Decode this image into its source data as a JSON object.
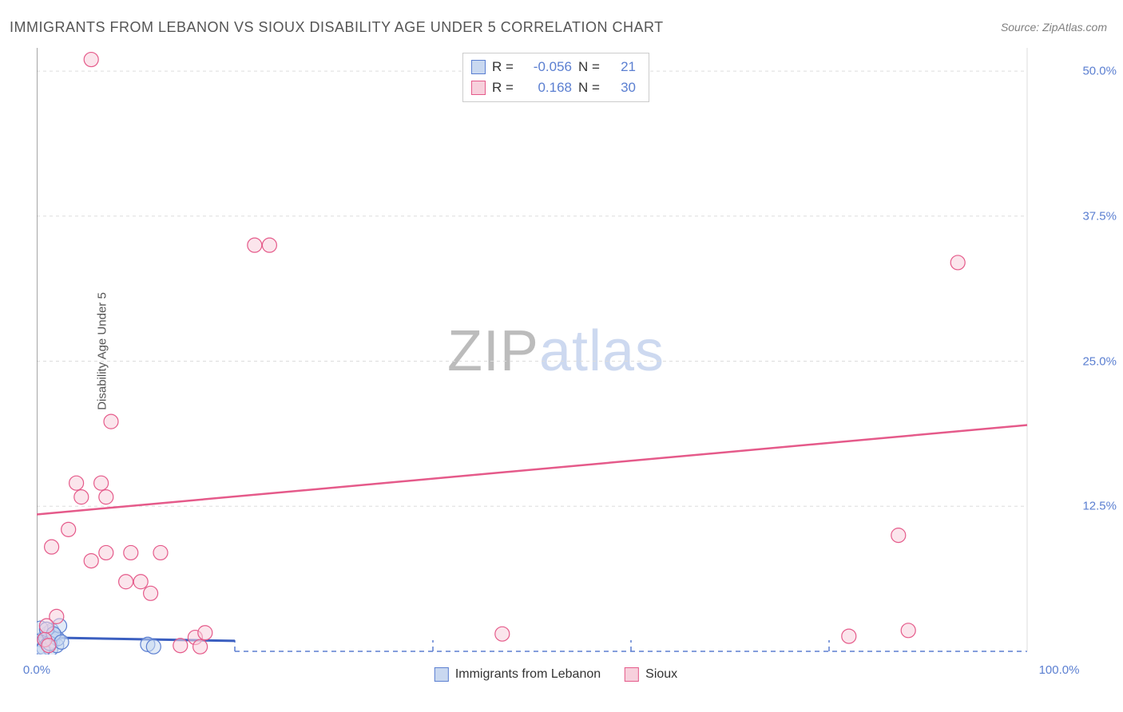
{
  "title": "IMMIGRANTS FROM LEBANON VS SIOUX DISABILITY AGE UNDER 5 CORRELATION CHART",
  "source": "Source: ZipAtlas.com",
  "y_axis_label": "Disability Age Under 5",
  "chart": {
    "type": "scatter",
    "xlim": [
      0,
      100
    ],
    "ylim": [
      0,
      52
    ],
    "x_ticks": [
      0,
      100
    ],
    "x_tick_labels": [
      "0.0%",
      "100.0%"
    ],
    "y_ticks": [
      12.5,
      25.0,
      37.5,
      50.0
    ],
    "y_tick_labels": [
      "12.5%",
      "25.0%",
      "37.5%",
      "50.0%"
    ],
    "dashed_x_ticks": [
      20,
      40,
      60,
      80
    ],
    "background_color": "#ffffff",
    "grid_color": "#dddddd",
    "axis_color": "#888888",
    "dashed_color": "#5b7fd1",
    "series": [
      {
        "name": "Immigrants from Lebanon",
        "marker_fill": "#c9d8f0",
        "marker_stroke": "#5b7fd1",
        "marker_opacity": 0.55,
        "marker_radius": 9,
        "line_color": "#3b5fc0",
        "line_width": 3,
        "R": "-0.056",
        "N": "21",
        "regression": {
          "x1": 0,
          "y1": 1.2,
          "x2": 20,
          "y2": 0.9
        },
        "points": [
          {
            "x": 0.3,
            "y": 0.4
          },
          {
            "x": 0.5,
            "y": 1.0
          },
          {
            "x": 0.7,
            "y": 0.3
          },
          {
            "x": 0.9,
            "y": 1.2
          },
          {
            "x": 1.1,
            "y": 0.6
          },
          {
            "x": 1.2,
            "y": 1.6
          },
          {
            "x": 1.4,
            "y": 0.2
          },
          {
            "x": 1.5,
            "y": 1.8
          },
          {
            "x": 1.6,
            "y": 0.9
          },
          {
            "x": 1.8,
            "y": 1.4
          },
          {
            "x": 2.0,
            "y": 0.5
          },
          {
            "x": 2.1,
            "y": 1.1
          },
          {
            "x": 2.3,
            "y": 2.2
          },
          {
            "x": 0.4,
            "y": 2.0
          },
          {
            "x": 0.6,
            "y": 0.1
          },
          {
            "x": 1.0,
            "y": 1.9
          },
          {
            "x": 1.3,
            "y": 0.7
          },
          {
            "x": 1.7,
            "y": 1.5
          },
          {
            "x": 11.2,
            "y": 0.6
          },
          {
            "x": 11.8,
            "y": 0.4
          },
          {
            "x": 2.5,
            "y": 0.8
          }
        ]
      },
      {
        "name": "Sioux",
        "marker_fill": "#f7d0dc",
        "marker_stroke": "#e55a8a",
        "marker_opacity": 0.55,
        "marker_radius": 9,
        "line_color": "#e55a8a",
        "line_width": 2.5,
        "R": "0.168",
        "N": "30",
        "regression": {
          "x1": 0,
          "y1": 11.8,
          "x2": 100,
          "y2": 19.5
        },
        "points": [
          {
            "x": 5.5,
            "y": 51.0
          },
          {
            "x": 22.0,
            "y": 35.0
          },
          {
            "x": 23.5,
            "y": 35.0
          },
          {
            "x": 93.0,
            "y": 33.5
          },
          {
            "x": 7.5,
            "y": 19.8
          },
          {
            "x": 4.0,
            "y": 14.5
          },
          {
            "x": 6.5,
            "y": 14.5
          },
          {
            "x": 4.5,
            "y": 13.3
          },
          {
            "x": 7.0,
            "y": 13.3
          },
          {
            "x": 3.2,
            "y": 10.5
          },
          {
            "x": 1.5,
            "y": 9.0
          },
          {
            "x": 87.0,
            "y": 10.0
          },
          {
            "x": 7.0,
            "y": 8.5
          },
          {
            "x": 9.5,
            "y": 8.5
          },
          {
            "x": 12.5,
            "y": 8.5
          },
          {
            "x": 5.5,
            "y": 7.8
          },
          {
            "x": 9.0,
            "y": 6.0
          },
          {
            "x": 10.5,
            "y": 6.0
          },
          {
            "x": 11.5,
            "y": 5.0
          },
          {
            "x": 2.0,
            "y": 3.0
          },
          {
            "x": 1.0,
            "y": 2.2
          },
          {
            "x": 16.0,
            "y": 1.2
          },
          {
            "x": 17.0,
            "y": 1.6
          },
          {
            "x": 47.0,
            "y": 1.5
          },
          {
            "x": 82.0,
            "y": 1.3
          },
          {
            "x": 88.0,
            "y": 1.8
          },
          {
            "x": 14.5,
            "y": 0.5
          },
          {
            "x": 16.5,
            "y": 0.4
          },
          {
            "x": 0.8,
            "y": 1.0
          },
          {
            "x": 1.2,
            "y": 0.5
          }
        ]
      }
    ]
  },
  "watermark": {
    "part1": "ZIP",
    "part2": "atlas"
  },
  "legend_top": {
    "r_label": "R =",
    "n_label": "N ="
  },
  "legend_bottom": {
    "items": [
      "Immigrants from Lebanon",
      "Sioux"
    ]
  }
}
